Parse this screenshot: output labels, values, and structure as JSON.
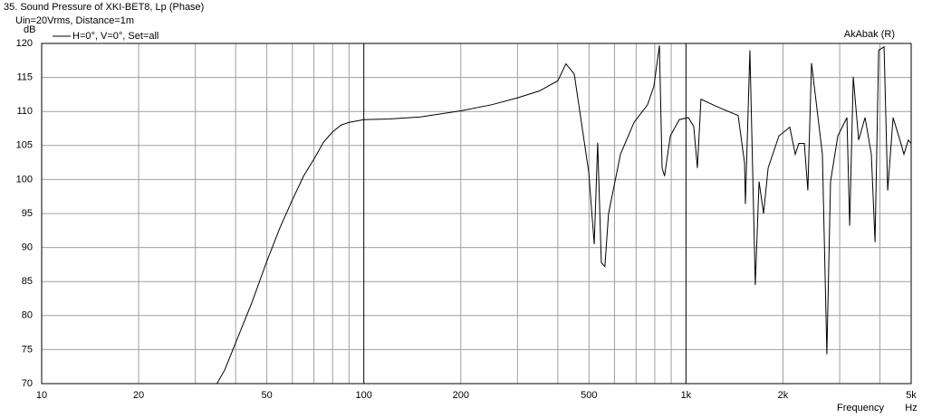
{
  "chart_data": {
    "type": "line",
    "title": "35. Sound Pressure of XKI-BET8, Lp (Phase)",
    "subtitle": "Uin=20Vrms, Distance=1m",
    "y_label": "dB",
    "x_label": "Frequency",
    "x_unit": "Hz",
    "watermark": "AkAbak (R)",
    "x_log": true,
    "grid": true,
    "xlim": [
      10,
      5000
    ],
    "ylim": [
      70,
      120
    ],
    "yticks": [
      70,
      75,
      80,
      85,
      90,
      95,
      100,
      105,
      110,
      115,
      120
    ],
    "xticks": [
      10,
      20,
      50,
      100,
      200,
      500,
      {
        "value": 1000,
        "label": "1k"
      },
      {
        "value": 2000,
        "label": "2k"
      },
      {
        "value": 5000,
        "label": "5k"
      }
    ],
    "xgrid": [
      30,
      40,
      60,
      70,
      80,
      90,
      300,
      400,
      600,
      700,
      800,
      900,
      3000,
      4000
    ],
    "x": [
      10,
      20,
      30,
      35,
      37,
      40,
      45,
      50,
      55,
      60,
      65,
      70,
      75,
      80,
      85,
      90,
      100,
      120,
      150,
      200,
      250,
      300,
      350,
      400,
      424,
      450,
      499,
      519,
      532,
      546,
      560,
      575,
      626,
      690,
      760,
      795,
      827,
      843,
      858,
      894,
      953,
      1017,
      1057,
      1085,
      1113,
      1236,
      1452,
      1520,
      1529,
      1579,
      1641,
      1686,
      1741,
      1799,
      1943,
      2100,
      2184,
      2240,
      2330,
      2389,
      2453,
      2651,
      2737,
      2810,
      2960,
      3159,
      3222,
      3305,
      3436,
      3596,
      3762,
      3862,
      3963,
      4120,
      4227,
      4395,
      4660,
      4748,
      4900,
      5000
    ],
    "series": [
      {
        "name": "H=0°, V=0°, Set=all",
        "color": "#000000",
        "values": [
          70,
          70,
          70,
          70,
          72,
          76,
          82,
          88,
          93,
          97,
          100.5,
          103,
          105.5,
          107,
          108,
          108.4,
          108.8,
          108.9,
          109.2,
          110.1,
          111,
          112,
          113,
          114.5,
          117,
          115.5,
          101.1,
          90.5,
          105.4,
          87.8,
          87.2,
          95,
          103.7,
          108.4,
          111,
          113.7,
          119.7,
          101.7,
          100.5,
          106.4,
          108.8,
          109.1,
          107.8,
          101.7,
          111.8,
          110.8,
          109.4,
          102.4,
          96.4,
          119,
          84.5,
          99.7,
          95,
          101.7,
          106.4,
          107.7,
          103.7,
          105.3,
          105.3,
          98.4,
          117.1,
          103.7,
          74.3,
          99.7,
          106.4,
          109.1,
          93.2,
          115.1,
          105.8,
          109.1,
          103.7,
          90.8,
          119,
          119.5,
          98.4,
          109.1,
          105.1,
          103.7,
          105.8,
          105.3
        ]
      }
    ]
  }
}
